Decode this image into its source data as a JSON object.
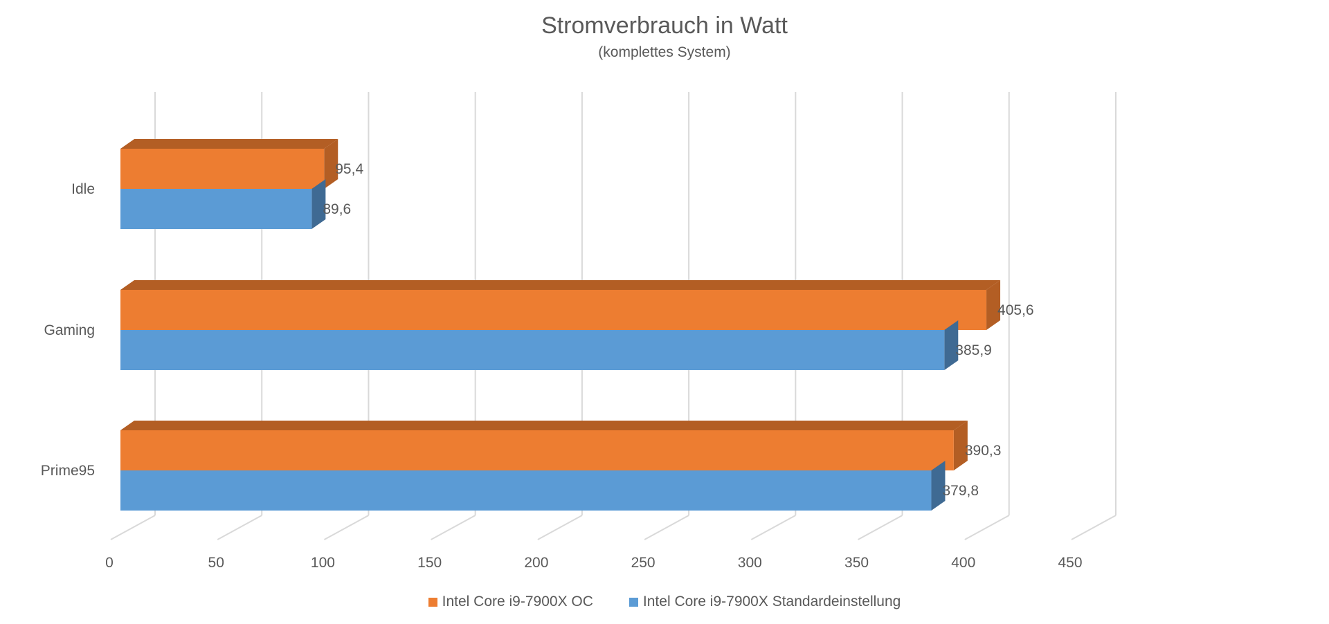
{
  "chart_data": {
    "type": "bar",
    "orientation": "horizontal",
    "style": "3d-clustered",
    "title": "Stromverbrauch in Watt",
    "subtitle": "(komplettes System)",
    "categories": [
      "Idle",
      "Gaming",
      "Prime95"
    ],
    "series": [
      {
        "name": "Intel Core i9-7900X OC",
        "color": "#ED7D31",
        "side_color": "#B35E24",
        "values": [
          95.4,
          405.6,
          390.3
        ],
        "labels": [
          "95,4",
          "405,6",
          "390,3"
        ]
      },
      {
        "name": "Intel Core i9-7900X Standardeinstellung",
        "color": "#5B9BD5",
        "side_color": "#3F6A93",
        "values": [
          89.6,
          385.9,
          379.8
        ],
        "labels": [
          "89,6",
          "385,9",
          "379,8"
        ]
      }
    ],
    "xlim": [
      0,
      450
    ],
    "x_ticks": [
      "0",
      "50",
      "100",
      "150",
      "200",
      "250",
      "300",
      "350",
      "400",
      "450"
    ],
    "grid": true,
    "legend_position": "bottom"
  }
}
